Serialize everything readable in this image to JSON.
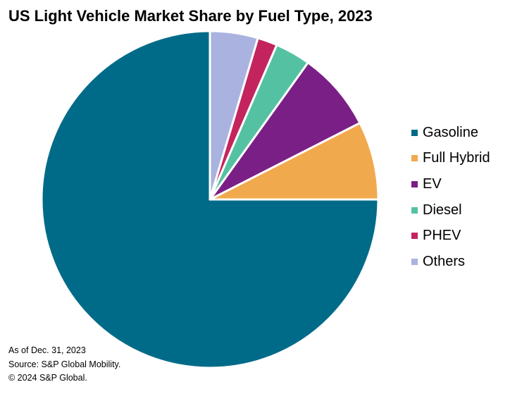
{
  "chart_data": {
    "type": "pie",
    "title": "US Light Vehicle Market Share by Fuel Type, 2023",
    "categories": [
      "Gasoline",
      "Full Hybrid",
      "EV",
      "Diesel",
      "PHEV",
      "Others"
    ],
    "values": [
      75.0,
      7.5,
      7.6,
      3.4,
      1.9,
      4.6
    ],
    "unit": "%",
    "colors": [
      "#006B88",
      "#F1A94E",
      "#7A1F86",
      "#55C1A3",
      "#C4245E",
      "#AAB3E0"
    ],
    "legend_position": "right",
    "start_angle": "top, slices proceed counter-clockwise starting with Gasoline"
  },
  "footer": {
    "date_note": "As of Dec. 31, 2023",
    "source": "Source: S&P Global Mobility.",
    "copyright": "© 2024 S&P Global."
  }
}
